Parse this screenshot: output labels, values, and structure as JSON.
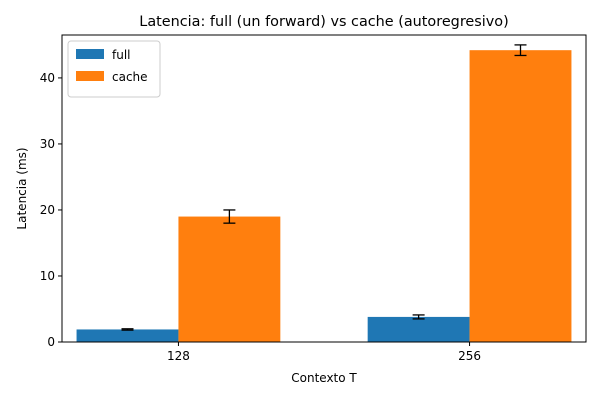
{
  "chart_data": {
    "type": "bar",
    "title": "Latencia: full (un forward) vs cache (autoregresivo)",
    "xlabel": "Contexto T",
    "ylabel": "Latencia (ms)",
    "categories": [
      "128",
      "256"
    ],
    "ylim": [
      0,
      46.5
    ],
    "yticks": [
      0,
      10,
      20,
      30,
      40
    ],
    "series": [
      {
        "name": "full",
        "color": "#1f77b4",
        "values": [
          1.9,
          3.8
        ],
        "errors": [
          0.1,
          0.3
        ]
      },
      {
        "name": "cache",
        "color": "#ff7f0e",
        "values": [
          19.0,
          44.2
        ],
        "errors": [
          1.0,
          0.8
        ]
      }
    ],
    "legend": "top-left",
    "grid": false
  }
}
